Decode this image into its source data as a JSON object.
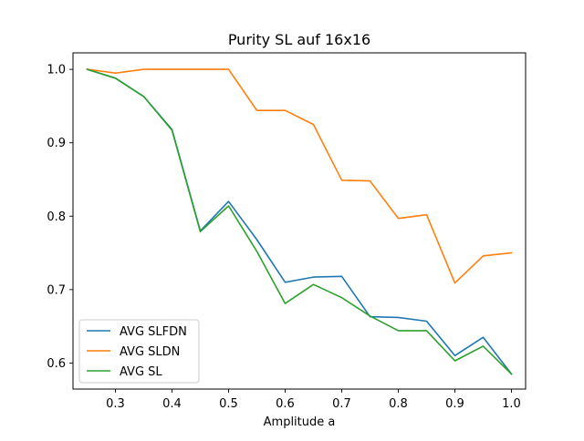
{
  "chart_data": {
    "type": "line",
    "title": "Purity SL auf 16x16",
    "xlabel": "Amplitude a",
    "ylabel": "",
    "xlim": [
      0.225,
      1.025
    ],
    "ylim": [
      0.5645,
      1.0225
    ],
    "xticks": [
      0.3,
      0.4,
      0.5,
      0.6,
      0.7,
      0.8,
      0.9,
      1.0
    ],
    "xtick_labels": [
      "0.3",
      "0.4",
      "0.5",
      "0.6",
      "0.7",
      "0.8",
      "0.9",
      "1.0"
    ],
    "yticks": [
      0.6,
      0.7,
      0.8,
      0.9,
      1.0
    ],
    "ytick_labels": [
      "0.6",
      "0.7",
      "0.8",
      "0.9",
      "1.0"
    ],
    "grid": false,
    "legend_position": "lower-left",
    "x": [
      0.25,
      0.3,
      0.35,
      0.4,
      0.45,
      0.5,
      0.55,
      0.6,
      0.65,
      0.7,
      0.75,
      0.8,
      0.85,
      0.9,
      0.95,
      1.0
    ],
    "series": [
      {
        "name": "AVG SLFDN",
        "color": "#1f77b4",
        "values": [
          1.0,
          0.988,
          0.963,
          0.918,
          0.78,
          0.82,
          0.768,
          0.71,
          0.717,
          0.718,
          0.663,
          0.662,
          0.657,
          0.61,
          0.635,
          0.585
        ]
      },
      {
        "name": "AVG SLDN",
        "color": "#ff7f0e",
        "values": [
          1.0,
          0.995,
          1.0,
          1.0,
          1.0,
          1.0,
          0.944,
          0.944,
          0.925,
          0.849,
          0.848,
          0.797,
          0.802,
          0.709,
          0.746,
          0.75
        ]
      },
      {
        "name": "AVG SL",
        "color": "#2ca02c",
        "values": [
          1.0,
          0.988,
          0.963,
          0.917,
          0.779,
          0.814,
          0.752,
          0.681,
          0.707,
          0.689,
          0.664,
          0.644,
          0.644,
          0.603,
          0.623,
          0.585
        ]
      }
    ]
  }
}
